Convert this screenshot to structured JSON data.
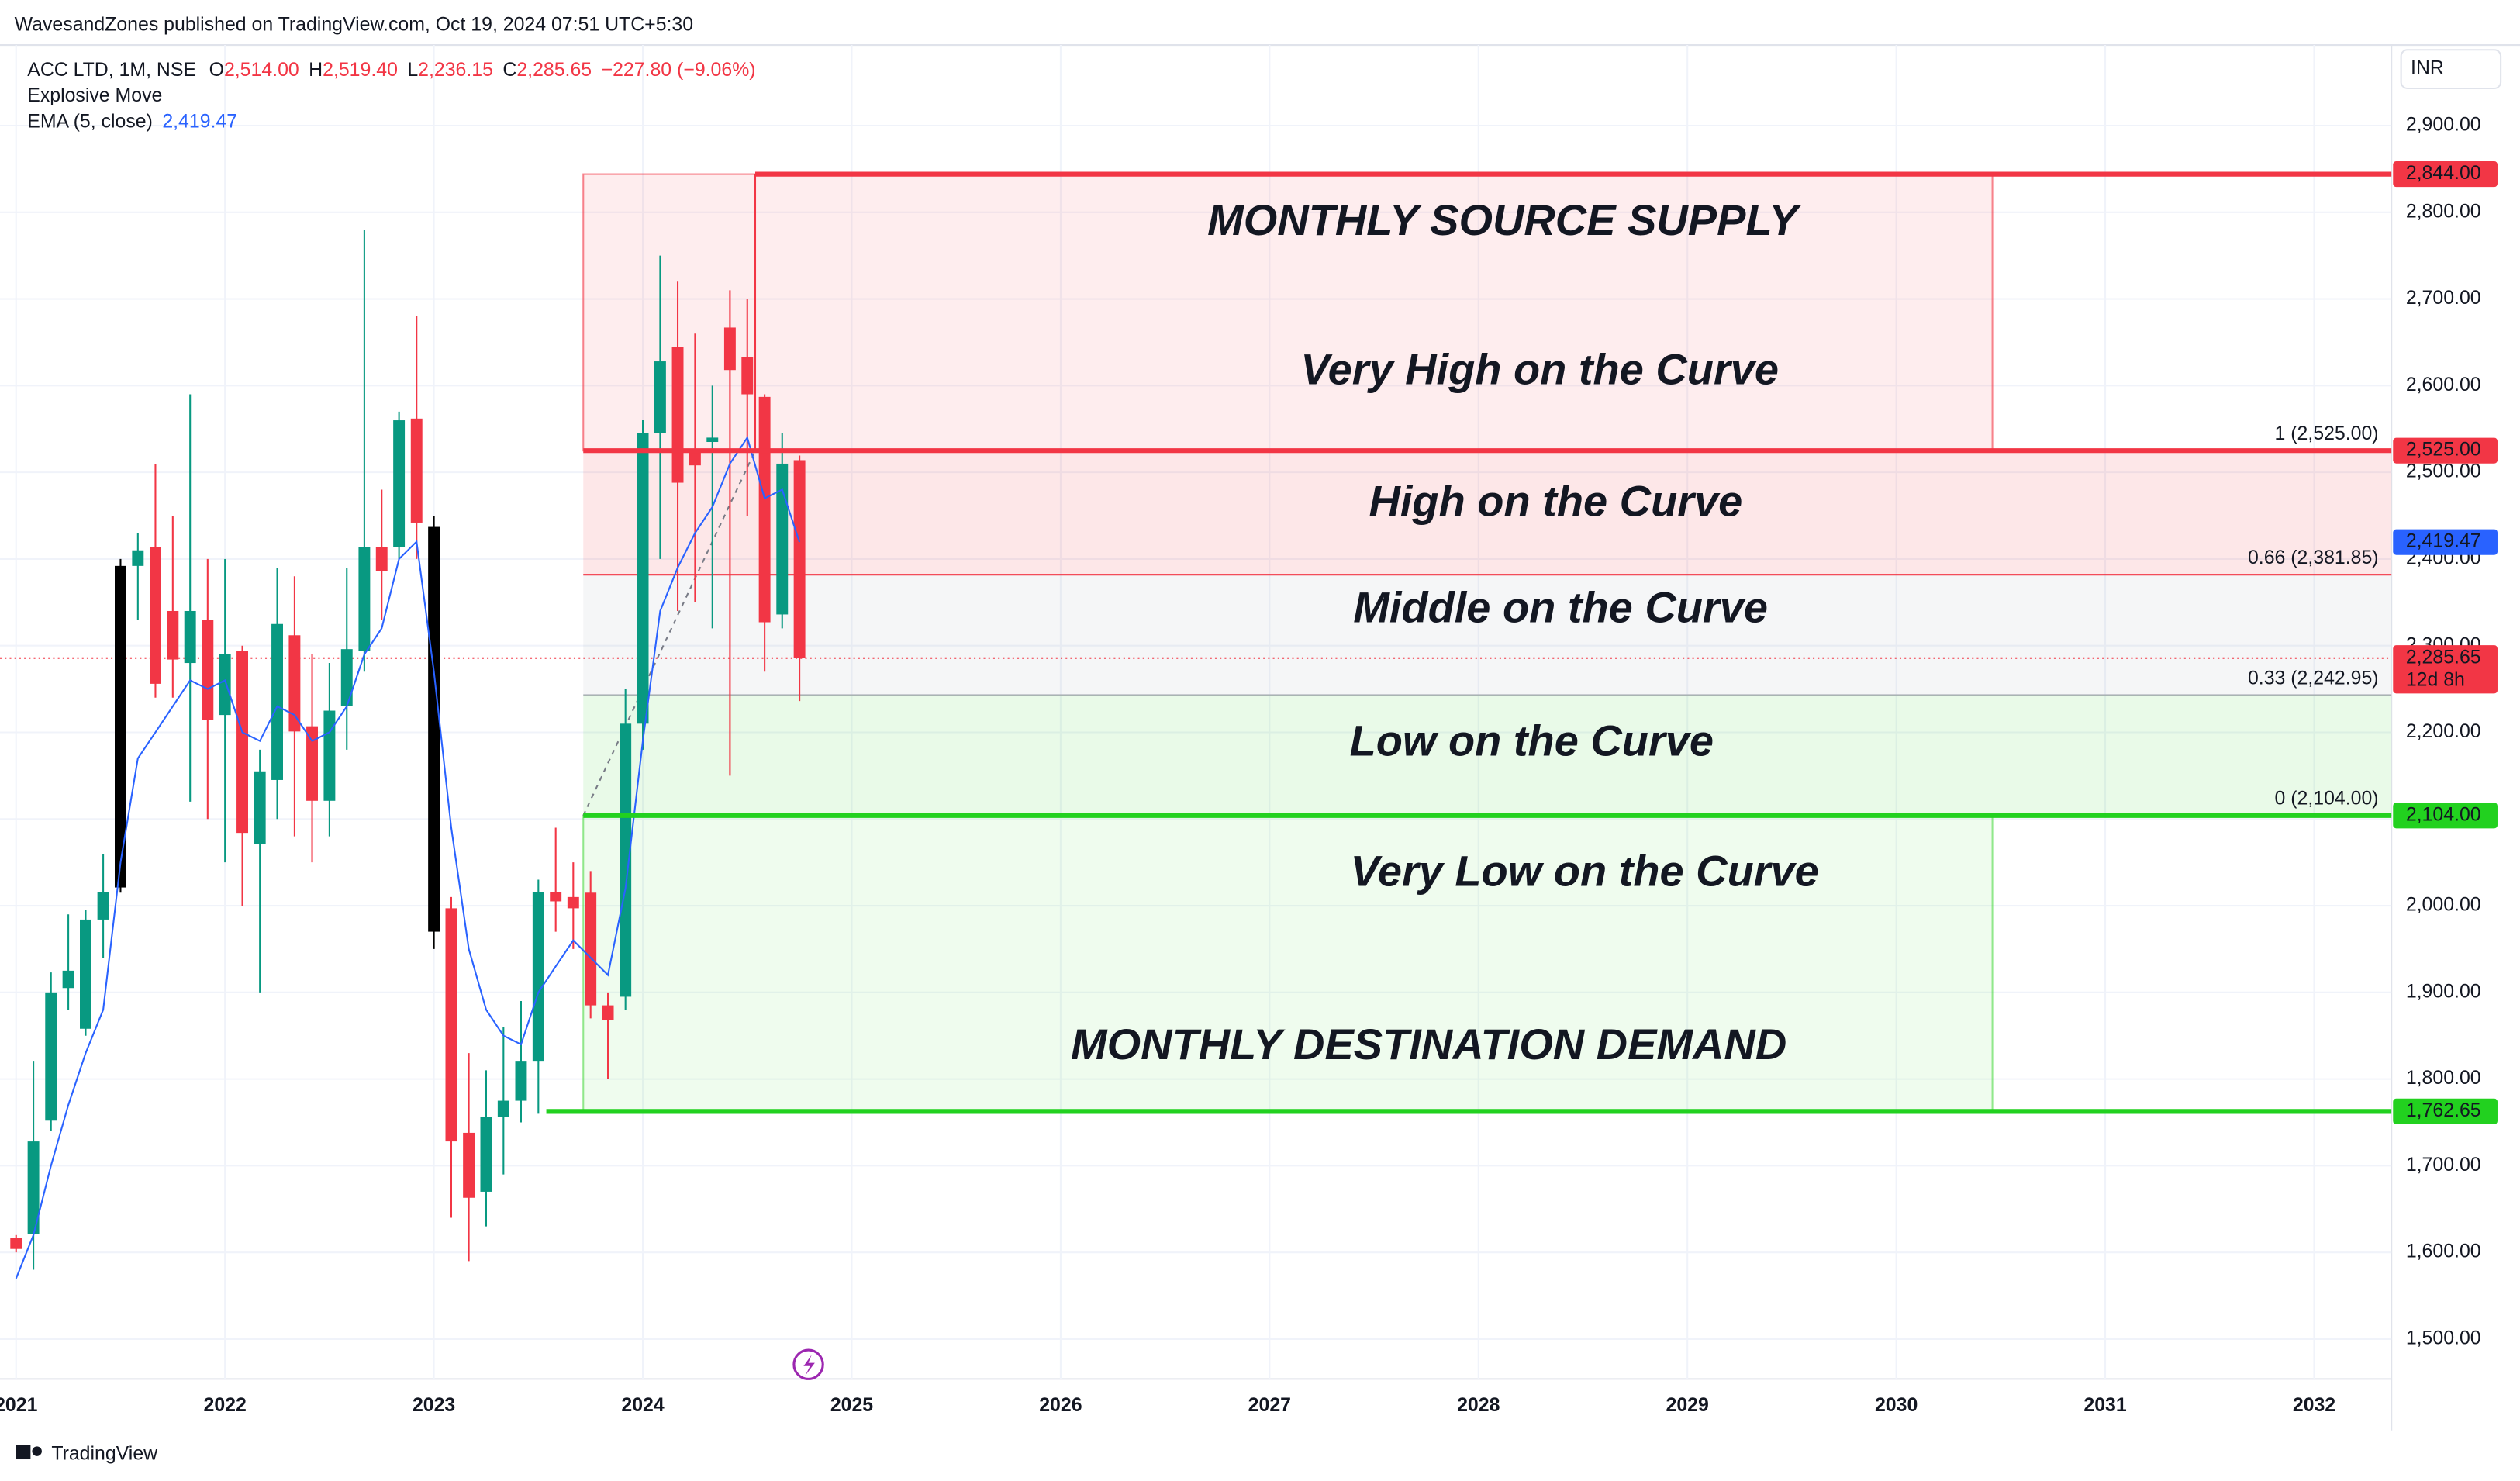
{
  "header": {
    "published": "WavesandZones published on TradingView.com, Oct 19, 2024 07:51 UTC+5:30",
    "symbol": "ACC LTD, 1M, NSE",
    "o_key": "O",
    "o": "2,514.00",
    "h_key": "H",
    "h": "2,519.40",
    "l_key": "L",
    "l": "2,236.15",
    "c_key": "C",
    "c": "2,285.65",
    "change": "−227.80 (−9.06%)",
    "indicator1": "Explosive Move",
    "indicator2": "EMA (5, close)",
    "indicator2_value": "2,419.47",
    "currency": "INR",
    "brand": "TradingView"
  },
  "chart_data": {
    "type": "candlestick",
    "x": [
      2021.0,
      2021.083,
      2021.167,
      2021.25,
      2021.333,
      2021.417,
      2021.5,
      2021.583,
      2021.667,
      2021.75,
      2021.833,
      2021.917,
      2022.0,
      2022.083,
      2022.167,
      2022.25,
      2022.333,
      2022.417,
      2022.5,
      2022.583,
      2022.667,
      2022.75,
      2022.833,
      2022.917,
      2023.0,
      2023.083,
      2023.167,
      2023.25,
      2023.333,
      2023.417,
      2023.5,
      2023.583,
      2023.667,
      2023.75,
      2023.833,
      2023.917,
      2024.0,
      2024.083,
      2024.167,
      2024.25,
      2024.333,
      2024.417,
      2024.5,
      2024.583,
      2024.667,
      2024.75
    ],
    "open": [
      1617,
      1621,
      1752,
      1905,
      1858,
      1984,
      2021,
      2392,
      2414,
      2340,
      2280,
      2330,
      2220,
      2294,
      2071,
      2145,
      2312,
      2207,
      2121,
      2230,
      2294,
      2414,
      2414,
      2562,
      2437,
      1997,
      1738,
      1670,
      1756,
      1775,
      1821,
      2016,
      2010,
      2015,
      1885,
      1895,
      2210,
      2545,
      2645,
      2527,
      2535,
      2667,
      2633,
      2587,
      2336,
      2514
    ],
    "high": [
      1620,
      1821,
      1923,
      1990,
      1995,
      2060,
      2400,
      2430,
      2510,
      2450,
      2590,
      2400,
      2400,
      2300,
      2180,
      2390,
      2380,
      2290,
      2280,
      2390,
      2780,
      2480,
      2570,
      2680,
      2450,
      2010,
      1830,
      1810,
      1860,
      1890,
      2030,
      2090,
      2050,
      2040,
      1900,
      2250,
      2560,
      2750,
      2720,
      2660,
      2600,
      2710,
      2700,
      2590,
      2545,
      2519.4
    ],
    "low": [
      1600,
      1580,
      1740,
      1880,
      1850,
      1940,
      2015,
      2330,
      2240,
      2240,
      2120,
      2100,
      2050,
      2000,
      1900,
      2100,
      2080,
      2050,
      2080,
      2180,
      2270,
      2330,
      2400,
      2400,
      1950,
      1640,
      1590,
      1630,
      1690,
      1750,
      1760,
      1970,
      1950,
      1870,
      1800,
      1880,
      2180,
      2400,
      2340,
      2350,
      2320,
      2150,
      2450,
      2270,
      2320,
      2236.15
    ],
    "close": [
      1604,
      1728,
      1900,
      1925,
      1984,
      2016,
      2392,
      2410,
      2256,
      2284,
      2340,
      2214,
      2290,
      2084,
      2155,
      2325,
      2201,
      2121,
      2225,
      2296,
      2414,
      2386,
      2560,
      2442,
      1970,
      1728,
      1663,
      1756,
      1775,
      1821,
      2016,
      2005,
      1997,
      1885,
      1868,
      2210,
      2545,
      2628,
      2488,
      2508,
      2540,
      2618,
      2590,
      2327,
      2510,
      2285.65
    ],
    "explosive": [
      6,
      24
    ],
    "colors": {
      "up": "#089981",
      "down": "#f23645",
      "explosive": "#000000"
    },
    "ema": {
      "color": "#2962ff",
      "values": [
        1570,
        1620,
        1700,
        1770,
        1830,
        1880,
        2050,
        2170,
        2200,
        2230,
        2260,
        2250,
        2260,
        2200,
        2190,
        2230,
        2220,
        2190,
        2200,
        2230,
        2290,
        2320,
        2400,
        2420,
        2270,
        2090,
        1950,
        1880,
        1850,
        1840,
        1900,
        1930,
        1960,
        1940,
        1920,
        2020,
        2190,
        2340,
        2390,
        2430,
        2460,
        2510,
        2540,
        2470,
        2480,
        2419.47
      ]
    },
    "xlim": [
      2020.923,
      2032.37
    ],
    "ylim": [
      1454,
      2993
    ],
    "xticks": [
      {
        "value": 2021,
        "label": "2021"
      },
      {
        "value": 2022,
        "label": "2022"
      },
      {
        "value": 2023,
        "label": "2023"
      },
      {
        "value": 2024,
        "label": "2024"
      },
      {
        "value": 2025,
        "label": "2025"
      },
      {
        "value": 2026,
        "label": "2026"
      },
      {
        "value": 2027,
        "label": "2027"
      },
      {
        "value": 2028,
        "label": "2028"
      },
      {
        "value": 2029,
        "label": "2029"
      },
      {
        "value": 2030,
        "label": "2030"
      },
      {
        "value": 2031,
        "label": "2031"
      },
      {
        "value": 2032,
        "label": "2032"
      }
    ],
    "yticks": [
      {
        "value": 1500,
        "label": "1,500.00"
      },
      {
        "value": 1600,
        "label": "1,600.00"
      },
      {
        "value": 1700,
        "label": "1,700.00"
      },
      {
        "value": 1800,
        "label": "1,800.00"
      },
      {
        "value": 1900,
        "label": "1,900.00"
      },
      {
        "value": 2000,
        "label": "2,000.00"
      },
      {
        "value": 2100,
        "label": "2,100.00"
      },
      {
        "value": 2200,
        "label": "2,200.00"
      },
      {
        "value": 2300,
        "label": "2,300.00"
      },
      {
        "value": 2400,
        "label": "2,400.00"
      },
      {
        "value": 2500,
        "label": "2,500.00"
      },
      {
        "value": 2600,
        "label": "2,600.00"
      },
      {
        "value": 2700,
        "label": "2,700.00"
      },
      {
        "value": 2800,
        "label": "2,800.00"
      },
      {
        "value": 2900,
        "label": "2,900.00"
      }
    ],
    "grid": true,
    "boxes": [
      {
        "low": 2525,
        "high": 2844,
        "x0": 2023.715,
        "x1": 2030.46,
        "color": "#f23645"
      },
      {
        "low": 1762.65,
        "high": 2104,
        "x0": 2023.715,
        "x1": 2030.46,
        "color": "#4cd944"
      }
    ],
    "fib_zones": [
      {
        "low": 2381.85,
        "high": 2525,
        "color": "#f23645"
      },
      {
        "low": 2242.95,
        "high": 2381.85,
        "color": "#b0b3bb"
      },
      {
        "low": 2104,
        "high": 2242.95,
        "color": "#4cd944"
      }
    ],
    "fib_x0": 2023.715,
    "fib_labels": [
      {
        "value": 2525,
        "label": "1 (2,525.00)",
        "color": "#f23645"
      },
      {
        "value": 2381.85,
        "label": "0.66 (2,381.85)",
        "color": "#c9cbd1"
      },
      {
        "value": 2242.95,
        "label": "0.33 (2,242.95)",
        "color": "#4cd944"
      },
      {
        "value": 2104,
        "label": "0 (2,104.00)",
        "color": "#4cd944"
      }
    ],
    "levels": [
      {
        "value": 2844,
        "x0": 2024.538,
        "color": "#f23645"
      },
      {
        "value": 2525,
        "x0": 2023.715,
        "color": "#f23645"
      },
      {
        "value": 2104,
        "x0": 2023.715,
        "color": "#22d11f"
      },
      {
        "value": 1762.65,
        "x0": 2023.538,
        "color": "#22d11f"
      }
    ],
    "price_labels": [
      {
        "value": 2844,
        "label": "2,844.00",
        "color": "#f23645"
      },
      {
        "value": 2525,
        "label": "2,525.00",
        "color": "#f23645"
      },
      {
        "value": 2419.47,
        "label": "2,419.47",
        "color": "#2962ff"
      },
      {
        "value": 2285.65,
        "label": "2,285.65",
        "color": "#f23645",
        "countdown": "12d 8h"
      },
      {
        "value": 2104,
        "label": "2,104.00",
        "color": "#22d11f"
      },
      {
        "value": 1762.65,
        "label": "1,762.65",
        "color": "#22d11f"
      }
    ],
    "annotations": [
      {
        "text": "MONTHLY SOURCE SUPPLY",
        "color": "#f0506a"
      },
      {
        "text": "Very High on the Curve",
        "color": "#f0506a"
      },
      {
        "text": "High on the Curve",
        "color": "#f0506a"
      },
      {
        "text": "Middle on the Curve",
        "color": "#8a8d96"
      },
      {
        "text": "Low on the Curve",
        "color": "#4cd944"
      },
      {
        "text": "Very Low on the Curve",
        "color": "#4cd944"
      },
      {
        "text": "MONTHLY DESTINATION DEMAND",
        "color": "#4cd944"
      }
    ]
  }
}
